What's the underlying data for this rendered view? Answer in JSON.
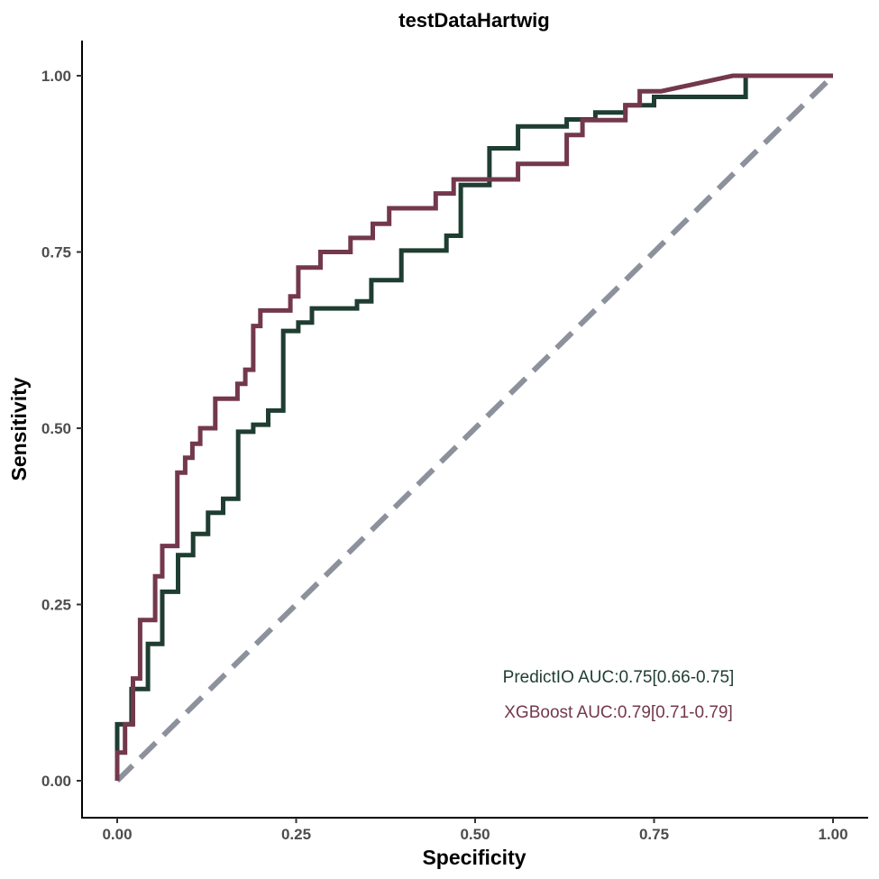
{
  "chart_data": {
    "type": "line",
    "title": "testDataHartwig",
    "xlabel": "Specificity",
    "ylabel": "Sensitivity",
    "xlim": [
      0,
      1
    ],
    "ylim": [
      0,
      1
    ],
    "x_ticks": [
      "0.00",
      "0.25",
      "0.50",
      "0.75",
      "1.00"
    ],
    "y_ticks": [
      "0.00",
      "0.25",
      "0.50",
      "0.75",
      "1.00"
    ],
    "grid": false,
    "reference_line": {
      "from": [
        0,
        0
      ],
      "to": [
        1,
        1
      ],
      "style": "dashed",
      "color": "#8c919c"
    },
    "series": [
      {
        "name": "PredictIO",
        "color": "#1f3d31",
        "points": [
          [
            0,
            0
          ],
          [
            0,
            0.08
          ],
          [
            0.02,
            0.08
          ],
          [
            0.02,
            0.13
          ],
          [
            0.043,
            0.13
          ],
          [
            0.043,
            0.194
          ],
          [
            0.063,
            0.194
          ],
          [
            0.063,
            0.268
          ],
          [
            0.085,
            0.268
          ],
          [
            0.085,
            0.32
          ],
          [
            0.106,
            0.32
          ],
          [
            0.106,
            0.35
          ],
          [
            0.127,
            0.35
          ],
          [
            0.127,
            0.38
          ],
          [
            0.148,
            0.38
          ],
          [
            0.148,
            0.4
          ],
          [
            0.169,
            0.4
          ],
          [
            0.169,
            0.495
          ],
          [
            0.19,
            0.495
          ],
          [
            0.19,
            0.505
          ],
          [
            0.211,
            0.505
          ],
          [
            0.211,
            0.525
          ],
          [
            0.232,
            0.525
          ],
          [
            0.232,
            0.638
          ],
          [
            0.253,
            0.638
          ],
          [
            0.253,
            0.65
          ],
          [
            0.272,
            0.65
          ],
          [
            0.272,
            0.67
          ],
          [
            0.335,
            0.67
          ],
          [
            0.335,
            0.68
          ],
          [
            0.355,
            0.68
          ],
          [
            0.355,
            0.71
          ],
          [
            0.397,
            0.71
          ],
          [
            0.397,
            0.752
          ],
          [
            0.46,
            0.752
          ],
          [
            0.46,
            0.773
          ],
          [
            0.48,
            0.773
          ],
          [
            0.48,
            0.845
          ],
          [
            0.52,
            0.845
          ],
          [
            0.52,
            0.897
          ],
          [
            0.56,
            0.897
          ],
          [
            0.56,
            0.928
          ],
          [
            0.628,
            0.928
          ],
          [
            0.628,
            0.938
          ],
          [
            0.668,
            0.938
          ],
          [
            0.668,
            0.948
          ],
          [
            0.71,
            0.948
          ],
          [
            0.71,
            0.958
          ],
          [
            0.75,
            0.958
          ],
          [
            0.75,
            0.97
          ],
          [
            0.878,
            0.97
          ],
          [
            0.878,
            1.0
          ],
          [
            1.0,
            1.0
          ]
        ]
      },
      {
        "name": "XGBoost",
        "color": "#73384d",
        "points": [
          [
            0,
            0
          ],
          [
            0,
            0.04
          ],
          [
            0.011,
            0.04
          ],
          [
            0.011,
            0.08
          ],
          [
            0.022,
            0.08
          ],
          [
            0.022,
            0.145
          ],
          [
            0.032,
            0.145
          ],
          [
            0.032,
            0.228
          ],
          [
            0.053,
            0.228
          ],
          [
            0.053,
            0.29
          ],
          [
            0.063,
            0.29
          ],
          [
            0.063,
            0.333
          ],
          [
            0.084,
            0.333
          ],
          [
            0.084,
            0.437
          ],
          [
            0.095,
            0.437
          ],
          [
            0.095,
            0.458
          ],
          [
            0.105,
            0.458
          ],
          [
            0.105,
            0.478
          ],
          [
            0.116,
            0.478
          ],
          [
            0.116,
            0.5
          ],
          [
            0.137,
            0.5
          ],
          [
            0.137,
            0.542
          ],
          [
            0.168,
            0.542
          ],
          [
            0.168,
            0.563
          ],
          [
            0.179,
            0.563
          ],
          [
            0.179,
            0.583
          ],
          [
            0.19,
            0.583
          ],
          [
            0.19,
            0.645
          ],
          [
            0.2,
            0.645
          ],
          [
            0.2,
            0.667
          ],
          [
            0.242,
            0.667
          ],
          [
            0.242,
            0.687
          ],
          [
            0.253,
            0.687
          ],
          [
            0.253,
            0.728
          ],
          [
            0.284,
            0.728
          ],
          [
            0.284,
            0.75
          ],
          [
            0.326,
            0.75
          ],
          [
            0.326,
            0.77
          ],
          [
            0.357,
            0.77
          ],
          [
            0.357,
            0.79
          ],
          [
            0.38,
            0.79
          ],
          [
            0.38,
            0.812
          ],
          [
            0.445,
            0.812
          ],
          [
            0.445,
            0.833
          ],
          [
            0.47,
            0.833
          ],
          [
            0.47,
            0.853
          ],
          [
            0.56,
            0.853
          ],
          [
            0.56,
            0.875
          ],
          [
            0.628,
            0.875
          ],
          [
            0.628,
            0.916
          ],
          [
            0.65,
            0.916
          ],
          [
            0.65,
            0.937
          ],
          [
            0.71,
            0.937
          ],
          [
            0.71,
            0.958
          ],
          [
            0.73,
            0.958
          ],
          [
            0.73,
            0.978
          ],
          [
            0.76,
            0.978
          ],
          [
            0.86,
            1.0
          ],
          [
            1.0,
            1.0
          ]
        ]
      }
    ],
    "annotations": [
      {
        "series": "PredictIO",
        "text": "PredictIO AUC:0.75[0.66-0.75]",
        "color": "#1f3d31"
      },
      {
        "series": "XGBoost",
        "text": "XGBoost AUC:0.79[0.71-0.79]",
        "color": "#73384d"
      }
    ]
  }
}
